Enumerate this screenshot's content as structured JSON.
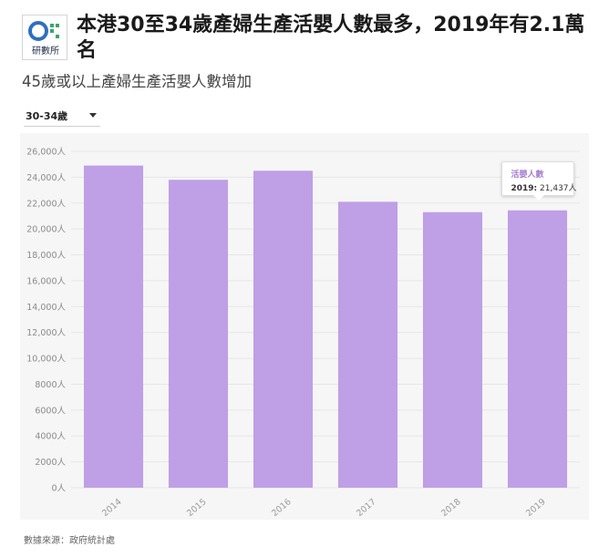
{
  "header": {
    "logo_text": "研數所",
    "title": "本港30至34歲產婦生產活嬰人數最多，2019年有2.1萬名",
    "subtitle": "45歲或以上產婦生產活嬰人數增加"
  },
  "selector": {
    "selected": "30-34歲"
  },
  "tooltip": {
    "series": "活嬰人數",
    "category": "2019:",
    "value": "21,437人"
  },
  "footer": {
    "source": "數據來源：政府統計處"
  },
  "colors": {
    "bar": "#bf9fe6",
    "grid": "#e6e6e6",
    "panel": "#f6f6f6",
    "accent": "#a67bd1"
  },
  "chart_data": {
    "type": "bar",
    "title": "",
    "xlabel": "",
    "ylabel": "",
    "categories": [
      "2014",
      "2015",
      "2016",
      "2017",
      "2018",
      "2019"
    ],
    "series": [
      {
        "name": "活嬰人數",
        "values": [
          24900,
          23800,
          24500,
          22100,
          21300,
          21437
        ]
      }
    ],
    "ylim": [
      0,
      26000
    ],
    "yticks": [
      0,
      2000,
      4000,
      6000,
      8000,
      10000,
      12000,
      14000,
      16000,
      18000,
      20000,
      22000,
      24000,
      26000
    ],
    "ytick_labels": [
      "0人",
      "2000人",
      "4000人",
      "6000人",
      "8000人",
      "10,000人",
      "12,000人",
      "14,000人",
      "16,000人",
      "18,000人",
      "20,000人",
      "22,000人",
      "24,000人",
      "26,000人"
    ],
    "grid": true,
    "legend": "none"
  }
}
